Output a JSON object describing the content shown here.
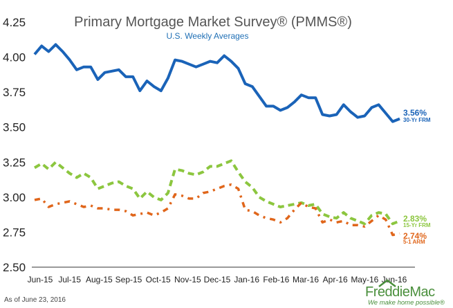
{
  "chart_data": {
    "type": "line",
    "title": "Primary Mortgage Market Survey® (PMMS®)",
    "subtitle": "U.S. Weekly Averages",
    "ylim": [
      2.5,
      4.25
    ],
    "yticks": [
      "4.25",
      "4.00",
      "3.75",
      "3.50",
      "3.25",
      "3.00",
      "2.75",
      "2.50"
    ],
    "ytick_values": [
      4.25,
      4.0,
      3.75,
      3.5,
      3.25,
      3.0,
      2.75,
      2.5
    ],
    "xticks": [
      "Jun-15",
      "Jul-15",
      "Aug-15",
      "Sep-15",
      "Oct-15",
      "Nov-15",
      "Dec-15",
      "Jan-16",
      "Feb-16",
      "Mar-16",
      "Apr-16",
      "May-16",
      "Jun-16"
    ],
    "grid": false,
    "legend": "inline-right",
    "series": [
      {
        "name": "30-Yr FRM",
        "end_label": "3.56%",
        "color": "#1a63b8",
        "style": "solid",
        "values": [
          4.02,
          4.08,
          4.04,
          4.09,
          4.04,
          3.98,
          3.91,
          3.93,
          3.93,
          3.84,
          3.89,
          3.9,
          3.91,
          3.86,
          3.86,
          3.76,
          3.83,
          3.79,
          3.76,
          3.85,
          3.98,
          3.97,
          3.95,
          3.93,
          3.95,
          3.97,
          3.96,
          4.01,
          3.97,
          3.92,
          3.81,
          3.79,
          3.72,
          3.65,
          3.65,
          3.62,
          3.64,
          3.68,
          3.73,
          3.71,
          3.71,
          3.59,
          3.58,
          3.59,
          3.66,
          3.61,
          3.57,
          3.58,
          3.64,
          3.66,
          3.6,
          3.54,
          3.56
        ]
      },
      {
        "name": "15-Yr FRM",
        "end_label": "2.83%",
        "color": "#8cc63f",
        "style": "dashed",
        "values": [
          3.21,
          3.24,
          3.2,
          3.25,
          3.21,
          3.17,
          3.14,
          3.17,
          3.14,
          3.06,
          3.08,
          3.1,
          3.11,
          3.08,
          3.06,
          2.99,
          3.04,
          3.0,
          2.98,
          3.03,
          3.2,
          3.19,
          3.17,
          3.16,
          3.18,
          3.22,
          3.22,
          3.24,
          3.26,
          3.18,
          3.11,
          3.07,
          3.0,
          2.97,
          2.95,
          2.93,
          2.94,
          2.95,
          2.96,
          2.94,
          2.95,
          2.88,
          2.86,
          2.85,
          2.89,
          2.85,
          2.83,
          2.81,
          2.87,
          2.89,
          2.88,
          2.81,
          2.83
        ]
      },
      {
        "name": "5-1 ARM",
        "end_label": "2.74%",
        "color": "#e0661b",
        "style": "dash-dot",
        "values": [
          2.98,
          2.99,
          2.93,
          2.95,
          2.96,
          2.97,
          2.95,
          2.93,
          2.94,
          2.92,
          2.92,
          2.91,
          2.91,
          2.9,
          2.87,
          2.88,
          2.89,
          2.87,
          2.89,
          2.92,
          3.02,
          3.01,
          2.99,
          2.99,
          3.03,
          3.04,
          3.06,
          3.08,
          3.09,
          3.06,
          2.91,
          2.9,
          2.87,
          2.85,
          2.84,
          2.82,
          2.85,
          2.91,
          2.96,
          2.93,
          2.92,
          2.82,
          2.84,
          2.82,
          2.83,
          2.8,
          2.8,
          2.79,
          2.83,
          2.87,
          2.84,
          2.73,
          2.74
        ]
      }
    ]
  },
  "footer": {
    "note": "As of June 23, 2016",
    "logo_text": "FreddieMac",
    "tagline": "We make home possible®"
  },
  "colors": {
    "axis": "#333333",
    "logo_green": "#4a8f3c"
  }
}
